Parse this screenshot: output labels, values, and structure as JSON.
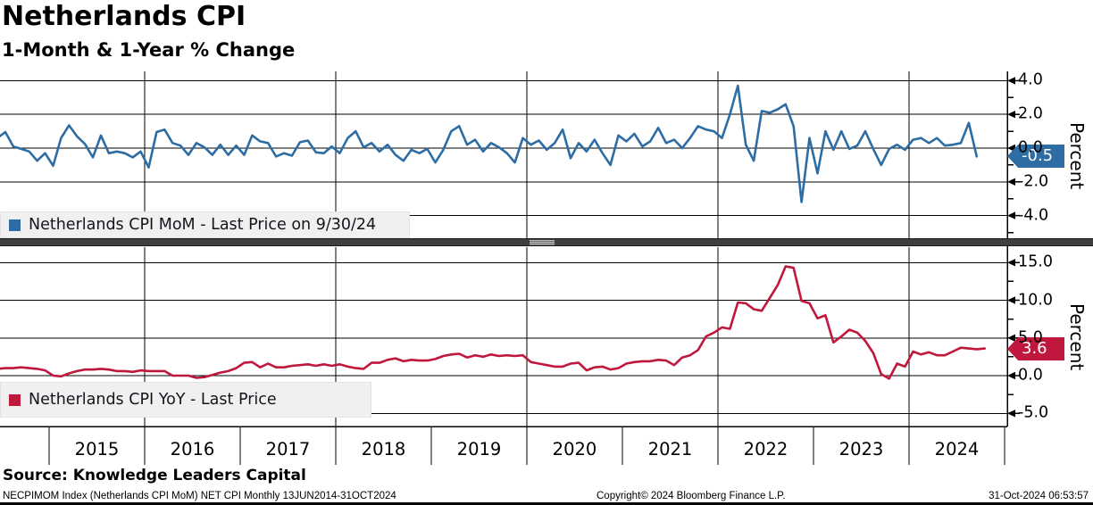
{
  "header": {
    "title": "Netherlands CPI",
    "subtitle": "1-Month & 1-Year % Change"
  },
  "source_line": "Source: Knowledge Leaders Capital",
  "footer": {
    "left": "NECPIMOM Index (Netherlands CPI MoM) NET CPI  Monthly 13JUN2014-31OCT2024",
    "center": "Copyright© 2024 Bloomberg Finance L.P.",
    "right": "31-Oct-2024 06:53:57"
  },
  "colors": {
    "mom_blue": "#2E6CA4",
    "yoy_red": "#C0173D",
    "grid": "#000000",
    "separator_gray": "#3F3F3F",
    "legend_bg": "#F0F0F0"
  },
  "x_axis": {
    "years": [
      "2015",
      "2016",
      "2017",
      "2018",
      "2019",
      "2020",
      "2021",
      "2022",
      "2023",
      "2024"
    ],
    "gridline_years": [
      2016,
      2018,
      2020,
      2022,
      2024
    ]
  },
  "chart_data": [
    {
      "type": "line",
      "name": "Netherlands CPI MoM",
      "legend": "Netherlands CPI MoM - Last Price on 9/30/24",
      "ylabel": "Percent",
      "color": "#2E6CA4",
      "last_price": "-0.5",
      "yticks": [
        4,
        2,
        0,
        -2,
        -4
      ],
      "ytick_labels": [
        "4.0",
        "2.0",
        "0.0",
        "-2.0",
        "-4.0"
      ],
      "minor_ticks": [
        3,
        1,
        -1,
        -3,
        -5
      ],
      "ylim": [
        -5.6,
        4.6
      ],
      "x_start": "2014-06",
      "x_end": "2024-09",
      "freq": "monthly",
      "grid": true,
      "legend_position": "bottom-left",
      "values": [
        0.6,
        0.95,
        0.1,
        -0.05,
        -0.2,
        -0.75,
        -0.3,
        -1.05,
        0.6,
        1.35,
        0.7,
        0.25,
        -0.55,
        0.75,
        -0.3,
        -0.2,
        -0.3,
        -0.55,
        -0.2,
        -1.15,
        0.95,
        1.1,
        0.3,
        0.15,
        -0.4,
        0.3,
        0.05,
        -0.4,
        0.2,
        -0.4,
        0.15,
        -0.4,
        0.75,
        0.4,
        0.3,
        -0.5,
        -0.3,
        -0.45,
        0.35,
        0.45,
        -0.25,
        -0.3,
        0.1,
        -0.3,
        0.6,
        1.0,
        0.05,
        0.3,
        -0.2,
        0.2,
        -0.4,
        -0.75,
        -0.1,
        -0.3,
        -0.05,
        -0.85,
        -0.1,
        1.0,
        1.3,
        0.2,
        0.5,
        -0.2,
        0.3,
        0.05,
        -0.3,
        -0.85,
        0.6,
        0.2,
        0.45,
        -0.1,
        0.3,
        1.1,
        -0.6,
        0.3,
        -0.2,
        0.5,
        -0.3,
        -1.0,
        0.75,
        0.4,
        0.85,
        0.1,
        0.4,
        1.2,
        0.3,
        0.5,
        0.0,
        0.6,
        1.3,
        1.1,
        1.0,
        0.6,
        2.0,
        3.7,
        0.2,
        -0.75,
        2.2,
        2.1,
        2.3,
        2.6,
        1.3,
        -3.2,
        0.6,
        -1.5,
        1.0,
        -0.1,
        1.0,
        -0.05,
        0.15,
        1.0,
        -0.05,
        -1.0,
        -0.05,
        0.2,
        -0.1,
        0.5,
        0.6,
        0.3,
        0.6,
        0.15,
        0.2,
        0.3,
        1.5,
        -0.5
      ]
    },
    {
      "type": "line",
      "name": "Netherlands CPI YoY",
      "legend": "Netherlands CPI YoY - Last Price",
      "ylabel": "Percent",
      "color": "#C0173D",
      "last_price": "3.6",
      "yticks": [
        15,
        10,
        5,
        0,
        -5
      ],
      "ytick_labels": [
        "15.0",
        "10.0",
        "5.0",
        "0.0",
        "-5.0"
      ],
      "minor_ticks": [
        12.5,
        7.5,
        2.5,
        -2.5
      ],
      "ylim": [
        -6.7,
        16.8
      ],
      "x_start": "2014-06",
      "x_end": "2024-10",
      "freq": "monthly",
      "grid": true,
      "legend_position": "bottom-left",
      "values": [
        0.9,
        1.0,
        1.0,
        1.1,
        1.0,
        0.9,
        0.7,
        0.0,
        -0.1,
        0.3,
        0.6,
        0.8,
        0.8,
        0.9,
        0.8,
        0.6,
        0.6,
        0.5,
        0.7,
        0.6,
        0.6,
        0.6,
        0.0,
        0.0,
        0.0,
        -0.3,
        -0.2,
        0.1,
        0.4,
        0.6,
        1.0,
        1.7,
        1.8,
        1.1,
        1.6,
        1.1,
        1.1,
        1.3,
        1.4,
        1.5,
        1.3,
        1.5,
        1.3,
        1.5,
        1.2,
        1.0,
        0.9,
        1.7,
        1.7,
        2.1,
        2.3,
        1.9,
        2.1,
        2.0,
        2.0,
        2.2,
        2.6,
        2.8,
        2.9,
        2.4,
        2.7,
        2.5,
        2.8,
        2.6,
        2.7,
        2.6,
        2.7,
        1.8,
        1.6,
        1.4,
        1.2,
        1.2,
        1.6,
        1.7,
        0.7,
        1.1,
        1.2,
        0.8,
        1.0,
        1.6,
        1.8,
        1.9,
        1.9,
        2.1,
        2.0,
        1.4,
        2.4,
        2.7,
        3.4,
        5.2,
        5.7,
        6.4,
        6.2,
        9.7,
        9.6,
        8.8,
        8.6,
        10.3,
        12.0,
        14.5,
        14.3,
        9.9,
        9.6,
        7.6,
        8.0,
        4.4,
        5.2,
        6.1,
        5.7,
        4.6,
        3.0,
        0.2,
        -0.4,
        1.6,
        1.2,
        3.2,
        2.8,
        3.1,
        2.7,
        2.7,
        3.2,
        3.7,
        3.6,
        3.5,
        3.6
      ]
    }
  ]
}
